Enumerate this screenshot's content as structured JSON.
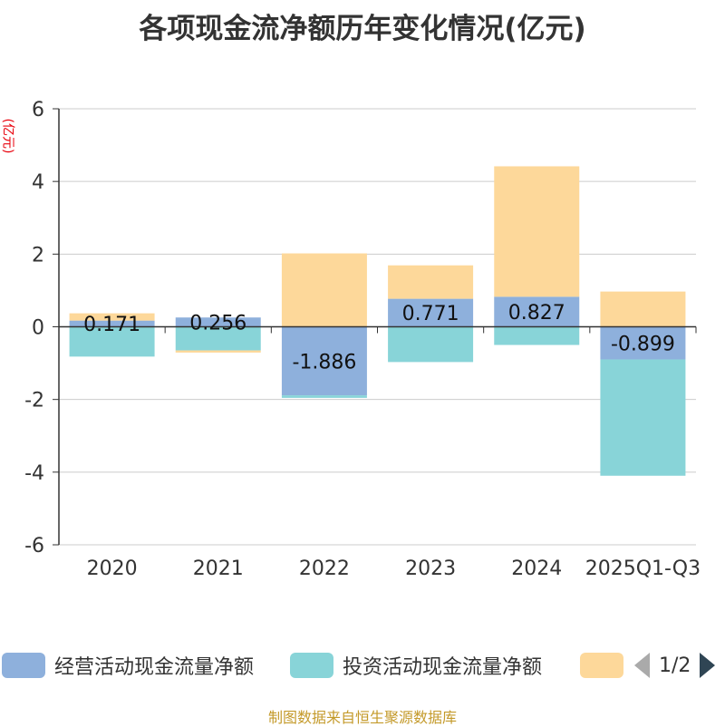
{
  "chart_data": {
    "type": "bar",
    "stacked": true,
    "title": "各项现金流净额历年变化情况(亿元)",
    "ylabel": "(亿元)",
    "categories": [
      "2020",
      "2021",
      "2022",
      "2023",
      "2024",
      "2025Q1-Q3"
    ],
    "yticks": [
      "6",
      "4",
      "2",
      "0",
      "-2",
      "-4",
      "-6"
    ],
    "ylim": [
      -6,
      6
    ],
    "grid": true,
    "series": [
      {
        "name": "经营活动现金流量净额",
        "color": "#8eb0dc",
        "values": [
          0.171,
          0.256,
          -1.886,
          0.771,
          0.827,
          -0.899
        ],
        "labels": [
          "0.171",
          "0.256",
          "-1.886",
          "0.771",
          "0.827",
          "-0.899"
        ]
      },
      {
        "name": "投资活动现金流量净额",
        "color": "#88d4d8",
        "values": [
          -0.82,
          -0.65,
          -0.07,
          -0.97,
          -0.5,
          -3.2
        ]
      },
      {
        "name": "",
        "color": "#fdd89a",
        "values": [
          0.2,
          -0.06,
          2.02,
          0.92,
          3.59,
          0.97
        ]
      }
    ]
  },
  "legend": {
    "items": [
      "经营活动现金流量净额",
      "投资活动现金流量净额",
      ""
    ],
    "page": "1/2"
  },
  "source": "制图数据来自恒生聚源数据库"
}
